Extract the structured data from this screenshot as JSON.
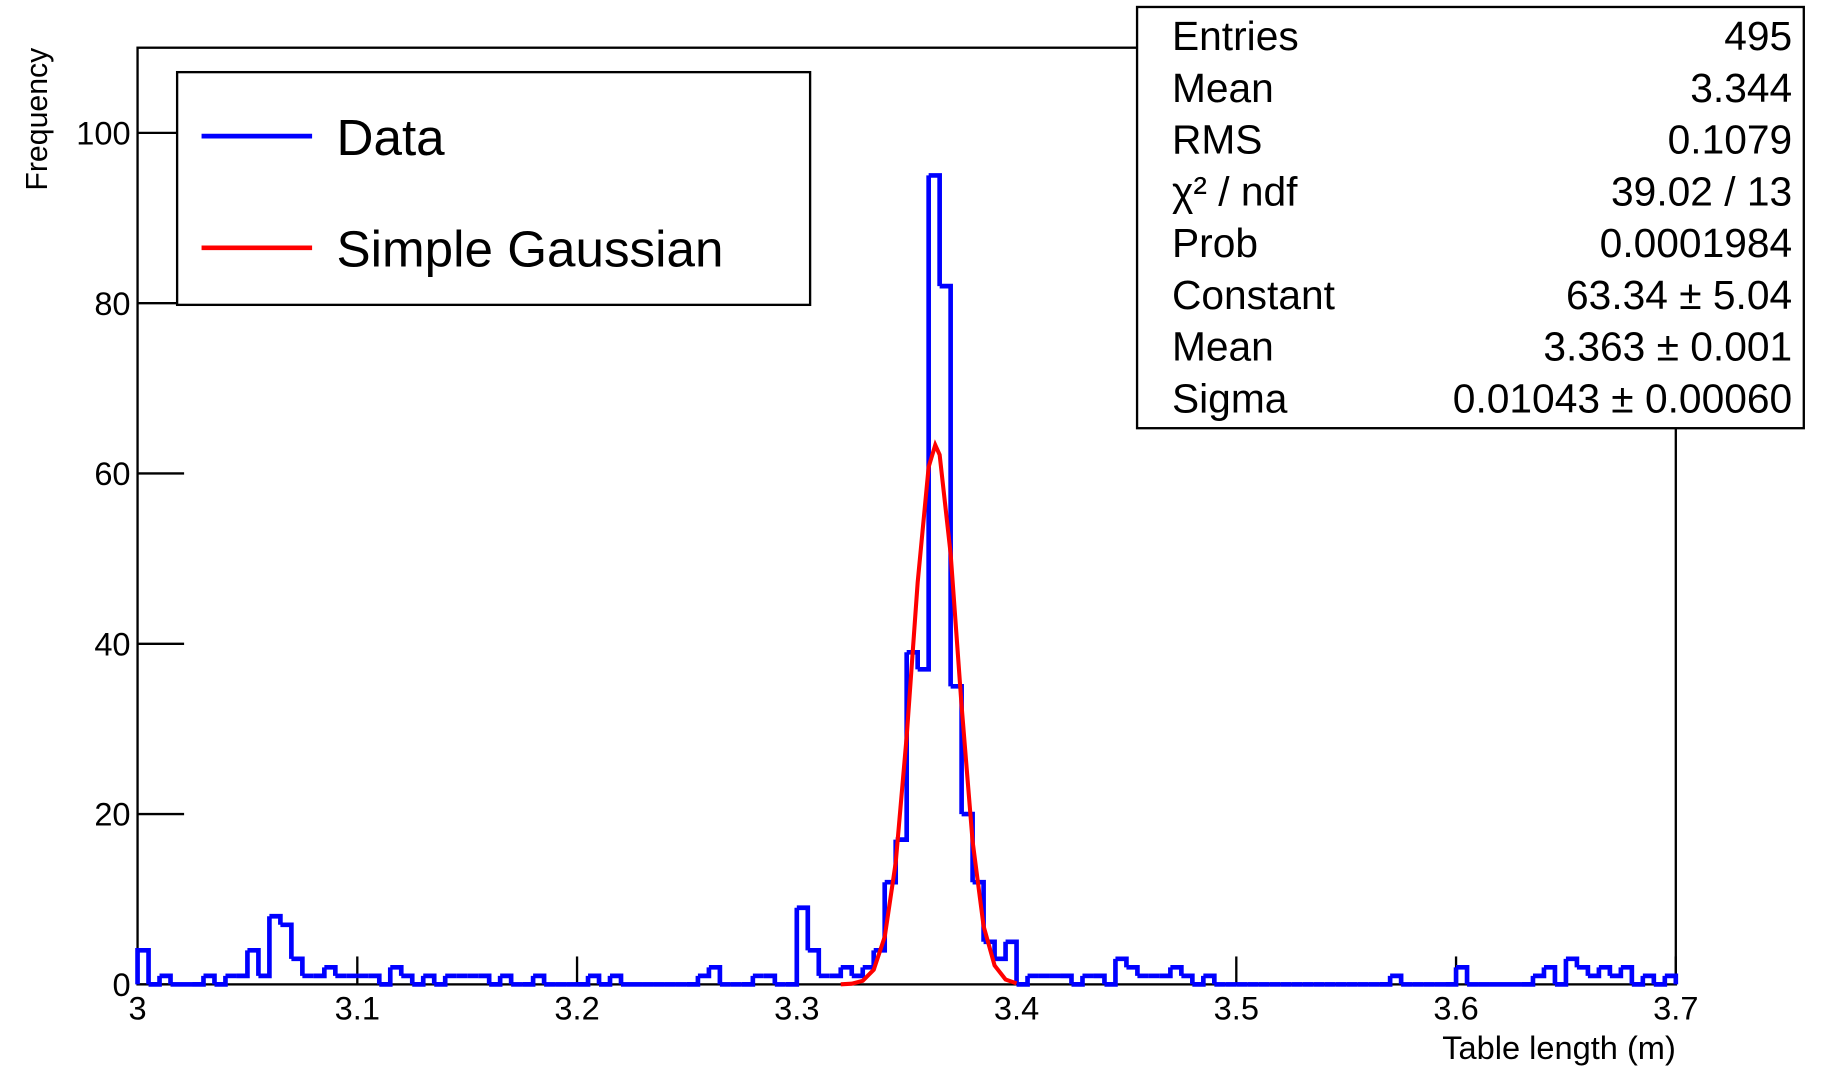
{
  "chart_data": {
    "type": "histogram",
    "xlabel": "Table length (m)",
    "ylabel": "Frequency",
    "xlim": [
      3,
      3.7
    ],
    "ylim": [
      0,
      110
    ],
    "xticks": [
      3,
      3.1,
      3.2,
      3.3,
      3.4,
      3.5,
      3.6,
      3.7
    ],
    "yticks": [
      0,
      20,
      40,
      60,
      80,
      100
    ],
    "legend": "upper left",
    "bins": [
      3,
      3.005,
      3.01,
      3.015,
      3.02,
      3.025,
      3.03,
      3.035,
      3.04,
      3.045,
      3.05,
      3.055,
      3.06,
      3.065,
      3.07,
      3.075,
      3.08,
      3.085,
      3.09,
      3.095,
      3.1,
      3.105,
      3.11,
      3.115,
      3.12,
      3.125,
      3.13,
      3.135,
      3.14,
      3.145,
      3.15,
      3.155,
      3.16,
      3.165,
      3.17,
      3.175,
      3.18,
      3.185,
      3.19,
      3.195,
      3.2,
      3.205,
      3.21,
      3.215,
      3.22,
      3.225,
      3.23,
      3.235,
      3.24,
      3.245,
      3.25,
      3.255,
      3.26,
      3.265,
      3.27,
      3.275,
      3.28,
      3.285,
      3.29,
      3.295,
      3.3,
      3.305,
      3.31,
      3.315,
      3.32,
      3.325,
      3.33,
      3.335,
      3.34,
      3.345,
      3.35,
      3.355,
      3.36,
      3.365,
      3.37,
      3.375,
      3.38,
      3.385,
      3.39,
      3.395,
      3.4,
      3.405,
      3.41,
      3.415,
      3.42,
      3.425,
      3.43,
      3.435,
      3.44,
      3.445,
      3.45,
      3.455,
      3.46,
      3.465,
      3.47,
      3.475,
      3.48,
      3.485,
      3.49,
      3.495,
      3.5,
      3.505,
      3.51,
      3.515,
      3.52,
      3.525,
      3.53,
      3.535,
      3.54,
      3.545,
      3.55,
      3.555,
      3.56,
      3.565,
      3.57,
      3.575,
      3.58,
      3.585,
      3.59,
      3.595,
      3.6,
      3.605,
      3.61,
      3.615,
      3.62,
      3.625,
      3.63,
      3.635,
      3.64,
      3.645,
      3.65,
      3.655,
      3.66,
      3.665,
      3.67,
      3.675,
      3.68,
      3.685,
      3.69,
      3.695,
      3.7
    ],
    "series": [
      {
        "name": "Data",
        "color": "#0000ff",
        "values": [
          4,
          0,
          1,
          0,
          0,
          0,
          1,
          0,
          1,
          1,
          4,
          1,
          8,
          7,
          3,
          1,
          1,
          2,
          1,
          1,
          1,
          1,
          0,
          2,
          1,
          0,
          1,
          0,
          1,
          1,
          1,
          1,
          0,
          1,
          0,
          0,
          1,
          0,
          0,
          0,
          0,
          1,
          0,
          1,
          0,
          0,
          0,
          0,
          0,
          0,
          0,
          1,
          2,
          0,
          0,
          0,
          1,
          1,
          0,
          0,
          9,
          4,
          1,
          1,
          2,
          1,
          2,
          4,
          12,
          17,
          39,
          37,
          95,
          82,
          35,
          20,
          12,
          5,
          3,
          5,
          0,
          1,
          1,
          1,
          1,
          0,
          1,
          1,
          0,
          3,
          2,
          1,
          1,
          1,
          2,
          1,
          0,
          1,
          0,
          0,
          0,
          0,
          0,
          0,
          0,
          0,
          0,
          0,
          0,
          0,
          0,
          0,
          0,
          0,
          1,
          0,
          0,
          0,
          0,
          0,
          2,
          0,
          0,
          0,
          0,
          0,
          0,
          1,
          2,
          0,
          3,
          2,
          1,
          2,
          1,
          2,
          0,
          1,
          0,
          1
        ]
      }
    ],
    "fit": {
      "name": "Simple Gaussian",
      "color": "#ff0000",
      "x": [
        3.32,
        3.325,
        3.33,
        3.335,
        3.34,
        3.345,
        3.35,
        3.355,
        3.36,
        3.363,
        3.365,
        3.37,
        3.375,
        3.38,
        3.385,
        3.39,
        3.395,
        3.4
      ],
      "y": [
        0.01,
        0.08,
        0.42,
        1.72,
        5.57,
        14.29,
        29.12,
        47.2,
        60.77,
        63.34,
        62.19,
        50.57,
        32.67,
        16.79,
        6.84,
        2.22,
        0.57,
        0.12
      ]
    },
    "stats": [
      {
        "label": "Entries",
        "value": "495"
      },
      {
        "label": "Mean",
        "value": "3.344"
      },
      {
        "label": "RMS",
        "value": "0.1079"
      },
      {
        "label": "χ² / ndf",
        "value": "39.02 / 13"
      },
      {
        "label": "Prob",
        "value": "0.0001984"
      },
      {
        "label": "Constant",
        "value": "63.34 ± 5.04"
      },
      {
        "label": "Mean",
        "value": "3.363 ± 0.001"
      },
      {
        "label": "Sigma",
        "value": "0.01043 ± 0.00060"
      }
    ]
  }
}
